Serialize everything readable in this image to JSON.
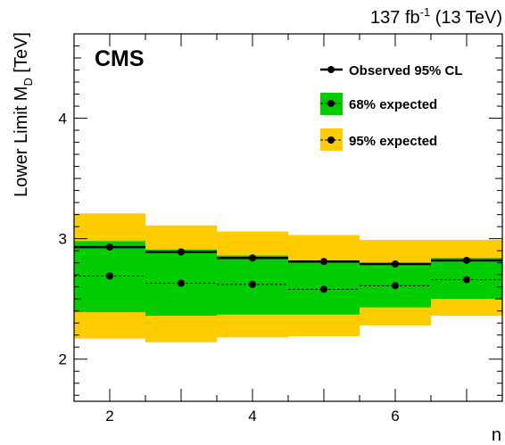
{
  "chart_data": {
    "type": "line",
    "experiment_label": "CMS",
    "lumi": {
      "value": "137 fb",
      "exponent": "-1",
      "energy": " (13 TeV)"
    },
    "xlabel": "n",
    "ylabel": {
      "main": "Lower Limit M",
      "subscript": "D",
      "unit": " [TeV]"
    },
    "xlim": [
      1.5,
      7.5
    ],
    "ylim": [
      1.65,
      4.7
    ],
    "x_ticks": [
      2,
      4,
      6
    ],
    "y_ticks": [
      2,
      3,
      4
    ],
    "legend_position": "top-right",
    "legend": {
      "observed": "Observed 95% CL",
      "expected68": "68% expected",
      "expected95": "95% expected"
    },
    "colors": {
      "band68": "#00cc00",
      "band95": "#ffcc00",
      "line": "#000000"
    },
    "bins": [
      {
        "x": 2,
        "observed": 2.93,
        "expected": 2.69,
        "band68": [
          2.39,
          2.98
        ],
        "band95": [
          2.17,
          3.21
        ]
      },
      {
        "x": 3,
        "observed": 2.89,
        "expected": 2.63,
        "band68": [
          2.36,
          2.91
        ],
        "band95": [
          2.14,
          3.11
        ]
      },
      {
        "x": 4,
        "observed": 2.84,
        "expected": 2.62,
        "band68": [
          2.37,
          2.86
        ],
        "band95": [
          2.18,
          3.06
        ]
      },
      {
        "x": 5,
        "observed": 2.81,
        "expected": 2.58,
        "band68": [
          2.37,
          2.82
        ],
        "band95": [
          2.19,
          3.03
        ]
      },
      {
        "x": 6,
        "observed": 2.79,
        "expected": 2.61,
        "band68": [
          2.43,
          2.8
        ],
        "band95": [
          2.28,
          2.99
        ]
      },
      {
        "x": 7,
        "observed": 2.82,
        "expected": 2.66,
        "band68": [
          2.5,
          2.84
        ],
        "band95": [
          2.36,
          2.99
        ]
      }
    ]
  }
}
